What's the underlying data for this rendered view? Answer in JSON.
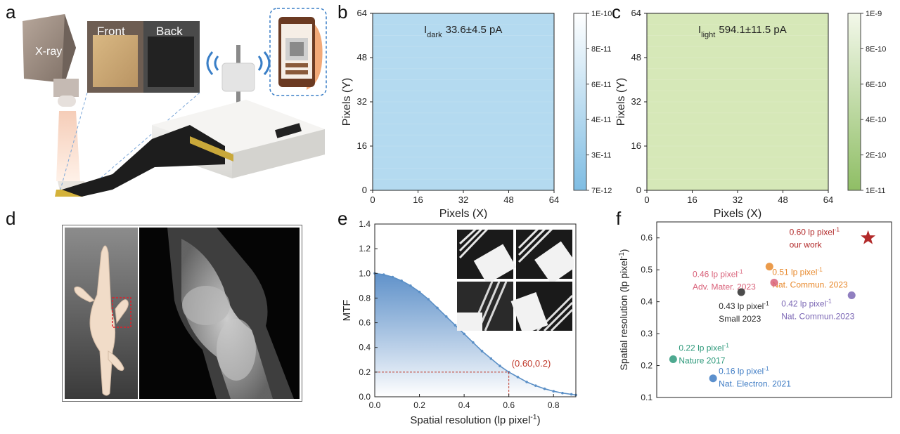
{
  "panels": {
    "a": {
      "letter": "a",
      "xray_label": "X-ray",
      "front_label": "Front",
      "back_label": "Back"
    },
    "b": {
      "letter": "b"
    },
    "c": {
      "letter": "c"
    },
    "d": {
      "letter": "d"
    },
    "e": {
      "letter": "e"
    },
    "f": {
      "letter": "f"
    }
  },
  "chart_data": [
    {
      "id": "b",
      "type": "heatmap",
      "title_main": "I",
      "title_sub": "dark",
      "title_value": "33.6±4.5 pA",
      "xlabel": "Pixels (X)",
      "ylabel": "Pixels (Y)",
      "xlim": [
        0,
        64
      ],
      "ylim": [
        0,
        64
      ],
      "xticks": [
        "0",
        "16",
        "32",
        "48",
        "64"
      ],
      "yticks": [
        "0",
        "16",
        "32",
        "48",
        "64"
      ],
      "colorbar_ticks": [
        "1E-10",
        "8E-11",
        "6E-11",
        "4E-11",
        "3E-11",
        "7E-12"
      ],
      "colors": {
        "low": "#7fbde3",
        "high": "#ffffff",
        "fill": "#b4daf0"
      }
    },
    {
      "id": "c",
      "type": "heatmap",
      "title_main": "I",
      "title_sub": "light",
      "title_value": "594.1±11.5 pA",
      "xlabel": "Pixels (X)",
      "ylabel": "Pixels (Y)",
      "xlim": [
        0,
        64
      ],
      "ylim": [
        0,
        64
      ],
      "xticks": [
        "0",
        "16",
        "32",
        "48",
        "64"
      ],
      "yticks": [
        "0",
        "16",
        "32",
        "48",
        "64"
      ],
      "colorbar_ticks": [
        "1E-9",
        "8E-10",
        "6E-10",
        "4E-10",
        "2E-10",
        "1E-11"
      ],
      "colors": {
        "low": "#8fbe65",
        "high": "#f3f8ea",
        "fill": "#d6e8b8"
      }
    },
    {
      "id": "e",
      "type": "line",
      "xlabel": "Spatial resolution (lp pixel",
      "xlabel_sup": "-1",
      "xlabel_end": ")",
      "ylabel": "MTF",
      "xlim": [
        0.0,
        0.9
      ],
      "ylim": [
        0.0,
        1.4
      ],
      "xticks": [
        0.0,
        0.2,
        0.4,
        0.6,
        0.8
      ],
      "xtick_labels": [
        "0.0",
        "0.2",
        "0.4",
        "0.6",
        "0.8"
      ],
      "yticks": [
        0.0,
        0.2,
        0.4,
        0.6,
        0.8,
        1.0,
        1.2,
        1.4
      ],
      "ytick_labels": [
        "0.0",
        "0.2",
        "0.4",
        "0.6",
        "0.8",
        "1.0",
        "1.2",
        "1.4"
      ],
      "x": [
        0.0,
        0.04,
        0.08,
        0.12,
        0.16,
        0.2,
        0.24,
        0.28,
        0.32,
        0.36,
        0.4,
        0.44,
        0.48,
        0.52,
        0.56,
        0.6,
        0.64,
        0.68,
        0.72,
        0.76,
        0.8,
        0.84,
        0.88,
        0.9
      ],
      "y": [
        1.0,
        0.99,
        0.97,
        0.94,
        0.9,
        0.85,
        0.79,
        0.72,
        0.65,
        0.58,
        0.51,
        0.44,
        0.37,
        0.31,
        0.25,
        0.2,
        0.16,
        0.12,
        0.09,
        0.065,
        0.045,
        0.03,
        0.02,
        0.015
      ],
      "annotation": "(0.60,0.2)",
      "annotation_point": [
        0.6,
        0.2
      ],
      "colors": {
        "line": "#5a8fc6",
        "fill_top": "#4f86c4",
        "fill_bottom": "#ffffff",
        "annotation": "#c0392b"
      }
    },
    {
      "id": "f",
      "type": "scatter",
      "ylabel": "Spatial resolution (lp pixel",
      "ylabel_sup": "-1",
      "ylabel_end": ")",
      "ylim": [
        0.1,
        0.65
      ],
      "yticks": [
        0.1,
        0.2,
        0.3,
        0.4,
        0.5,
        0.6
      ],
      "ytick_labels": [
        "0.1",
        "0.2",
        "0.3",
        "0.4",
        "0.5",
        "0.6"
      ],
      "points": [
        {
          "value": 0.6,
          "label1": "0.60 lp pixel",
          "label2": "our work",
          "color": "#b22a2a",
          "marker": "star"
        },
        {
          "value": 0.51,
          "label1": "0.51 lp pixel",
          "label2": "Nat. Commun. 2023",
          "color": "#e8892c",
          "marker": "circle"
        },
        {
          "value": 0.46,
          "label1": "0.46 lp pixel",
          "label2": "Adv. Mater. 2023",
          "color": "#d9637b",
          "marker": "circle"
        },
        {
          "value": 0.43,
          "label1": "0.43 lp pixel",
          "label2": "Small 2023",
          "color": "#2b2b2b",
          "marker": "circle"
        },
        {
          "value": 0.42,
          "label1": "0.42 lp pixel",
          "label2": "Nat. Commun.2023",
          "color": "#7c68b5",
          "marker": "circle"
        },
        {
          "value": 0.22,
          "label1": "0.22 lp pixel",
          "label2": "Nature 2017",
          "color": "#2f9a7c",
          "marker": "circle"
        },
        {
          "value": 0.16,
          "label1": "0.16 lp pixel",
          "label2": "Nat. Electron. 2021",
          "color": "#3f7cc4",
          "marker": "circle"
        }
      ],
      "sup": "-1"
    }
  ]
}
